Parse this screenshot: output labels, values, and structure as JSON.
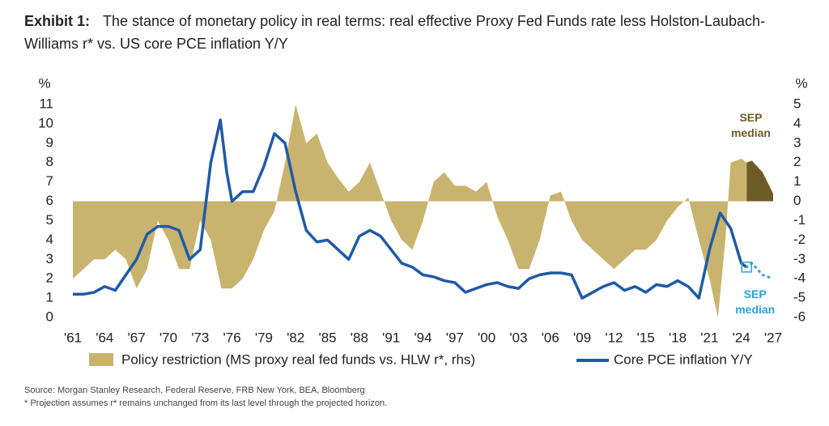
{
  "chart_data": {
    "type": "line",
    "title_label": "Exhibit 1:",
    "title": "The stance of monetary policy in real terms: real effective Proxy Fed Funds rate less Holston-Laubach-Williams r* vs. US core PCE inflation Y/Y",
    "y_unit": "%",
    "y2_unit": "%",
    "xlim": [
      1961,
      2027
    ],
    "xticks": [
      {
        "value": 1961,
        "label": "'61"
      },
      {
        "value": 1964,
        "label": "'64"
      },
      {
        "value": 1967,
        "label": "'67"
      },
      {
        "value": 1970,
        "label": "'70"
      },
      {
        "value": 1973,
        "label": "'73"
      },
      {
        "value": 1976,
        "label": "'76"
      },
      {
        "value": 1979,
        "label": "'79"
      },
      {
        "value": 1982,
        "label": "'82"
      },
      {
        "value": 1985,
        "label": "'85"
      },
      {
        "value": 1988,
        "label": "'88"
      },
      {
        "value": 1991,
        "label": "'91"
      },
      {
        "value": 1994,
        "label": "'94"
      },
      {
        "value": 1997,
        "label": "'97"
      },
      {
        "value": 2000,
        "label": "'00"
      },
      {
        "value": 2003,
        "label": "'03"
      },
      {
        "value": 2006,
        "label": "'06"
      },
      {
        "value": 2009,
        "label": "'09"
      },
      {
        "value": 2012,
        "label": "'12"
      },
      {
        "value": 2015,
        "label": "'15"
      },
      {
        "value": 2018,
        "label": "'18"
      },
      {
        "value": 2021,
        "label": "'21"
      },
      {
        "value": 2024,
        "label": "'24"
      },
      {
        "value": 2027,
        "label": "'27"
      }
    ],
    "ylim": [
      0,
      11
    ],
    "yticks": [
      0,
      1,
      2,
      3,
      4,
      5,
      6,
      7,
      8,
      9,
      10,
      11
    ],
    "y2lim": [
      -6,
      5
    ],
    "y2ticks": [
      -6,
      -5,
      -4,
      -3,
      -2,
      -1,
      0,
      1,
      2,
      3,
      4,
      5
    ],
    "series": [
      {
        "name": "Policy restriction (MS proxy real fed funds vs. HLW r*, rhs)",
        "kind": "area",
        "axis": "y2",
        "color": "#c9b46f",
        "x": [
          1961,
          1962,
          1963,
          1964,
          1965,
          1966,
          1967,
          1968,
          1969,
          1970,
          1971,
          1972,
          1973,
          1974,
          1975,
          1976,
          1977,
          1978,
          1979,
          1980,
          1981,
          1982,
          1983,
          1984,
          1985,
          1986,
          1987,
          1988,
          1989,
          1990,
          1991,
          1992,
          1993,
          1994,
          1995,
          1996,
          1997,
          1998,
          1999,
          2000,
          2001,
          2002,
          2003,
          2004,
          2005,
          2006,
          2007,
          2008,
          2009,
          2010,
          2011,
          2012,
          2013,
          2014,
          2015,
          2016,
          2017,
          2018,
          2019,
          2020,
          2021,
          2021.8,
          2022.5,
          2023,
          2024,
          2024.5
        ],
        "values": [
          -4,
          -3.5,
          -3,
          -3,
          -2.5,
          -3,
          -4.5,
          -3.5,
          -1,
          -2,
          -3.5,
          -3.5,
          -1,
          -2,
          -4.5,
          -4.5,
          -4,
          -3,
          -1.5,
          -0.5,
          2,
          5,
          3,
          3.5,
          2,
          1.2,
          0.5,
          1,
          2,
          0.5,
          -1,
          -2,
          -2.5,
          -1,
          1,
          1.5,
          0.8,
          0.8,
          0.5,
          1,
          -0.8,
          -2,
          -3.5,
          -3.5,
          -2,
          0.3,
          0.5,
          -1,
          -2,
          -2.5,
          -3,
          -3.5,
          -3,
          -2.5,
          -2.5,
          -2,
          -1,
          -0.3,
          0.2,
          -2,
          -4,
          -6,
          -2,
          2,
          2.2,
          2
        ]
      },
      {
        "kind": "area",
        "axis": "y2",
        "color": "#6e5c28",
        "x": [
          2024.5,
          2025,
          2026,
          2027
        ],
        "values": [
          2,
          2.1,
          1.5,
          0.4
        ]
      },
      {
        "name": "Core PCE inflation Y/Y",
        "kind": "line",
        "color": "#1f5aa6",
        "x": [
          1961,
          1962,
          1963,
          1964,
          1965,
          1966,
          1967,
          1968,
          1969,
          1970,
          1971,
          1972,
          1973,
          1974,
          1974.9,
          1975.5,
          1976,
          1977,
          1978,
          1979,
          1980,
          1981,
          1982,
          1983,
          1984,
          1985,
          1986,
          1987,
          1988,
          1989,
          1990,
          1991,
          1992,
          1993,
          1994,
          1995,
          1996,
          1997,
          1998,
          1999,
          2000,
          2001,
          2002,
          2003,
          2004,
          2005,
          2006,
          2007,
          2008,
          2009,
          2010,
          2011,
          2012,
          2013,
          2014,
          2015,
          2016,
          2017,
          2018,
          2019,
          2020,
          2021,
          2022,
          2023,
          2024,
          2024.5
        ],
        "values": [
          1.2,
          1.2,
          1.3,
          1.6,
          1.4,
          2.2,
          3,
          4.3,
          4.7,
          4.7,
          4.5,
          3,
          3.5,
          8,
          10.2,
          7.5,
          6,
          6.5,
          6.5,
          7.8,
          9.5,
          9,
          6.5,
          4.5,
          3.9,
          4,
          3.5,
          3,
          4.2,
          4.5,
          4.2,
          3.5,
          2.8,
          2.6,
          2.2,
          2.1,
          1.9,
          1.8,
          1.3,
          1.5,
          1.7,
          1.8,
          1.6,
          1.5,
          2,
          2.2,
          2.3,
          2.3,
          2.2,
          1,
          1.3,
          1.6,
          1.8,
          1.4,
          1.6,
          1.3,
          1.7,
          1.6,
          1.9,
          1.6,
          1,
          3.5,
          5.4,
          4.6,
          2.8,
          2.6
        ]
      },
      {
        "kind": "dotted",
        "color": "#2aa3d6",
        "x": [
          2024.5,
          2025,
          2026,
          2027
        ],
        "values": [
          2.6,
          2.8,
          2.2,
          2.0
        ]
      }
    ],
    "annotations": [
      {
        "text": "SEP median",
        "color": "#6e5c28",
        "x": 2024.9,
        "y2": 3.9
      },
      {
        "text": "SEP median",
        "color": "#2aa3d6",
        "x": 2025.3,
        "y2": -5.2
      }
    ],
    "source": "Source: Morgan Stanley Research, Federal Reserve, FRB New York, BEA, Bloomberg",
    "note": "* Projection assumes r* remains unchanged from its last level through the projected horizon."
  }
}
